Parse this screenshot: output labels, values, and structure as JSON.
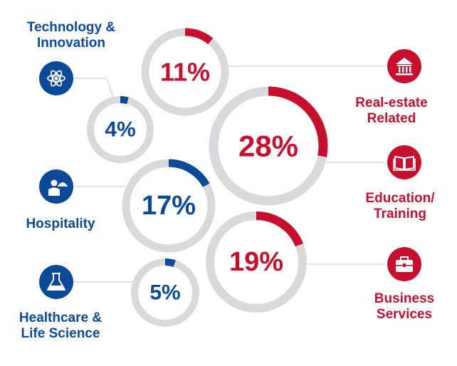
{
  "chart_data": {
    "type": "donut",
    "unit": "%",
    "colors": {
      "left": "#0a4a99",
      "right": "#c8102e",
      "track": "#d9d9dc",
      "leader": "#c9c9c9"
    },
    "segments": [
      {
        "category": "Technology & Innovation",
        "label_lines": [
          "Technology &",
          "Innovation"
        ],
        "value": 4,
        "value_label": "4%",
        "side": "left",
        "icon": "atom-icon"
      },
      {
        "category": "Real-estate Related",
        "label_lines": [
          "Real-estate",
          "Related"
        ],
        "value": 11,
        "value_label": "11%",
        "side": "right",
        "icon": "building-icon"
      },
      {
        "category": "Education/ Training",
        "label_lines": [
          "Education/",
          "Training"
        ],
        "value": 28,
        "value_label": "28%",
        "side": "right",
        "icon": "book-icon"
      },
      {
        "category": "Hospitality",
        "label_lines": [
          "Hospitality"
        ],
        "value": 17,
        "value_label": "17%",
        "side": "left",
        "icon": "waiter-icon"
      },
      {
        "category": "Business Services",
        "label_lines": [
          "Business",
          "Services"
        ],
        "value": 19,
        "value_label": "19%",
        "side": "right",
        "icon": "briefcase-icon"
      },
      {
        "category": "Healthcare & Life Science",
        "label_lines": [
          "Healthcare &",
          "Life Science"
        ],
        "value": 5,
        "value_label": "5%",
        "side": "left",
        "icon": "flask-icon"
      }
    ]
  }
}
